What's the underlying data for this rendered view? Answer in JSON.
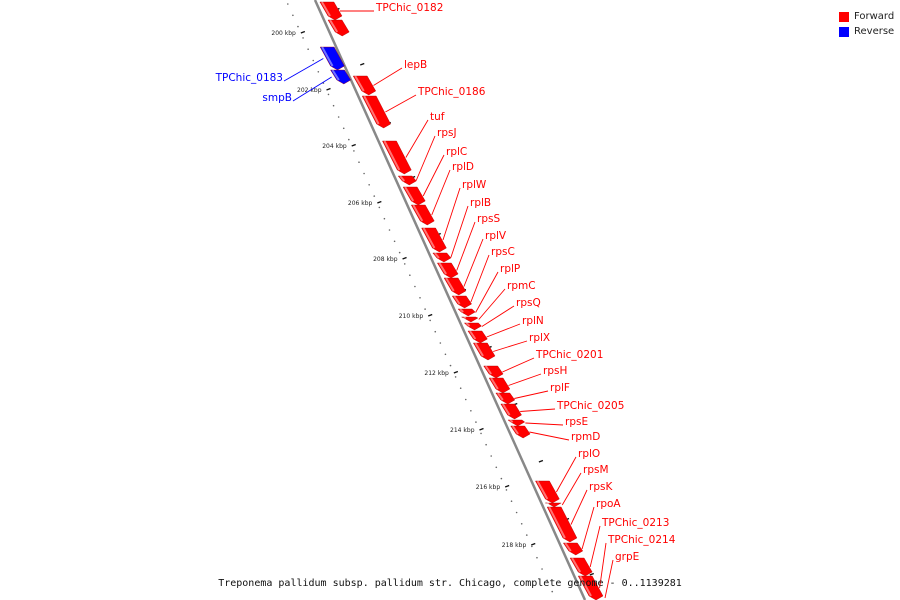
{
  "caption": "Treponema pallidum subsp. pallidum str. Chicago, complete genome - 0..1139281",
  "legend": [
    {
      "label": "Forward",
      "color": "#ff0000"
    },
    {
      "label": "Reverse",
      "color": "#0000ff"
    }
  ],
  "colors": {
    "forward": "#ff0000",
    "reverse": "#0000ff",
    "backbone": "#888888"
  },
  "ruler_labels": [
    "200 kbp",
    "202 kbp",
    "204 kbp",
    "206 kbp",
    "208 kbp",
    "210 kbp",
    "212 kbp",
    "214 kbp",
    "216 kbp",
    "218 kbp"
  ],
  "genes": [
    {
      "name": "TPChic_0182",
      "strand": "forward"
    },
    {
      "name": "TPChic_0183",
      "strand": "reverse"
    },
    {
      "name": "smpB",
      "strand": "reverse"
    },
    {
      "name": "lepB",
      "strand": "forward"
    },
    {
      "name": "TPChic_0186",
      "strand": "forward"
    },
    {
      "name": "tuf",
      "strand": "forward"
    },
    {
      "name": "rpsJ",
      "strand": "forward"
    },
    {
      "name": "rplC",
      "strand": "forward"
    },
    {
      "name": "rplD",
      "strand": "forward"
    },
    {
      "name": "rplW",
      "strand": "forward"
    },
    {
      "name": "rplB",
      "strand": "forward"
    },
    {
      "name": "rpsS",
      "strand": "forward"
    },
    {
      "name": "rplV",
      "strand": "forward"
    },
    {
      "name": "rpsC",
      "strand": "forward"
    },
    {
      "name": "rplP",
      "strand": "forward"
    },
    {
      "name": "rpmC",
      "strand": "forward"
    },
    {
      "name": "rpsQ",
      "strand": "forward"
    },
    {
      "name": "rplN",
      "strand": "forward"
    },
    {
      "name": "rplX",
      "strand": "forward"
    },
    {
      "name": "TPChic_0201",
      "strand": "forward"
    },
    {
      "name": "rpsH",
      "strand": "forward"
    },
    {
      "name": "rplF",
      "strand": "forward"
    },
    {
      "name": "TPChic_0205",
      "strand": "forward"
    },
    {
      "name": "rpsE",
      "strand": "forward"
    },
    {
      "name": "rpmD",
      "strand": "forward"
    },
    {
      "name": "rplO",
      "strand": "forward"
    },
    {
      "name": "rpsM",
      "strand": "forward"
    },
    {
      "name": "rpsK",
      "strand": "forward"
    },
    {
      "name": "rpoA",
      "strand": "forward"
    },
    {
      "name": "TPChic_0213",
      "strand": "forward"
    },
    {
      "name": "TPChic_0214",
      "strand": "forward"
    },
    {
      "name": "grpE",
      "strand": "forward"
    }
  ]
}
